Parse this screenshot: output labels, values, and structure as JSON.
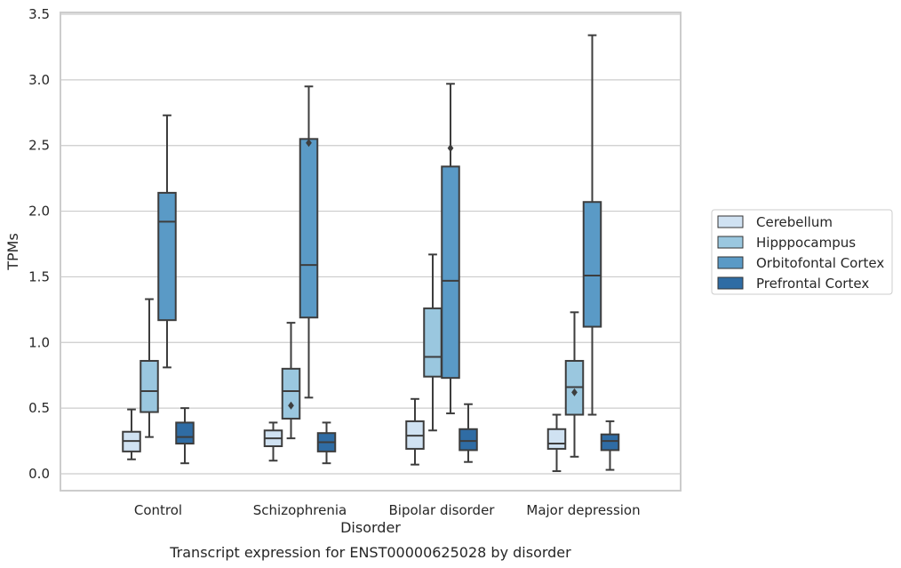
{
  "chart_data": {
    "type": "box",
    "title": "Transcript expression for ENST00000625028 by disorder",
    "xlabel": "Disorder",
    "ylabel": "TPMs",
    "ylim": [
      -0.13,
      3.52
    ],
    "yticks": [
      "0.0",
      "0.5",
      "1.0",
      "1.5",
      "2.0",
      "2.5",
      "3.0",
      "3.5"
    ],
    "grid": true,
    "legend_position": "right",
    "categories": [
      "Control",
      "Schizophrenia",
      "Bipolar disorder",
      "Major depression"
    ],
    "series": [
      {
        "name": "Cerebellum",
        "color": "#d0e2f2",
        "boxes": [
          {
            "whislo": 0.11,
            "q1": 0.17,
            "med": 0.25,
            "q3": 0.32,
            "whishi": 0.49,
            "fliers": []
          },
          {
            "whislo": 0.1,
            "q1": 0.21,
            "med": 0.27,
            "q3": 0.33,
            "whishi": 0.39,
            "fliers": []
          },
          {
            "whislo": 0.07,
            "q1": 0.19,
            "med": 0.29,
            "q3": 0.4,
            "whishi": 0.57,
            "fliers": []
          },
          {
            "whislo": 0.02,
            "q1": 0.19,
            "med": 0.23,
            "q3": 0.34,
            "whishi": 0.45,
            "fliers": []
          }
        ]
      },
      {
        "name": "Hipppocampus",
        "color": "#9ac7df",
        "boxes": [
          {
            "whislo": 0.28,
            "q1": 0.47,
            "med": 0.63,
            "q3": 0.86,
            "whishi": 1.33,
            "fliers": []
          },
          {
            "whislo": 0.27,
            "q1": 0.42,
            "med": 0.63,
            "q3": 0.8,
            "whishi": 1.15,
            "fliers": [
              0.52
            ]
          },
          {
            "whislo": 0.33,
            "q1": 0.74,
            "med": 0.89,
            "q3": 1.26,
            "whishi": 1.67,
            "fliers": []
          },
          {
            "whislo": 0.13,
            "q1": 0.45,
            "med": 0.66,
            "q3": 0.86,
            "whishi": 1.23,
            "fliers": [
              0.62
            ]
          }
        ]
      },
      {
        "name": "Orbitofontal Cortex",
        "color": "#5a9ac6",
        "boxes": [
          {
            "whislo": 0.81,
            "q1": 1.17,
            "med": 1.92,
            "q3": 2.14,
            "whishi": 2.73,
            "fliers": []
          },
          {
            "whislo": 0.58,
            "q1": 1.19,
            "med": 1.59,
            "q3": 2.55,
            "whishi": 2.95,
            "fliers": [
              2.52
            ]
          },
          {
            "whislo": 0.46,
            "q1": 0.73,
            "med": 1.47,
            "q3": 2.34,
            "whishi": 2.97,
            "fliers": [
              2.48
            ]
          },
          {
            "whislo": 0.45,
            "q1": 1.12,
            "med": 1.51,
            "q3": 2.07,
            "whishi": 3.34,
            "fliers": []
          }
        ]
      },
      {
        "name": "Prefrontal Cortex",
        "color": "#2f6ca4",
        "boxes": [
          {
            "whislo": 0.08,
            "q1": 0.23,
            "med": 0.28,
            "q3": 0.39,
            "whishi": 0.5,
            "fliers": []
          },
          {
            "whislo": 0.08,
            "q1": 0.17,
            "med": 0.24,
            "q3": 0.31,
            "whishi": 0.39,
            "fliers": []
          },
          {
            "whislo": 0.09,
            "q1": 0.18,
            "med": 0.25,
            "q3": 0.34,
            "whishi": 0.53,
            "fliers": []
          },
          {
            "whislo": 0.03,
            "q1": 0.18,
            "med": 0.25,
            "q3": 0.3,
            "whishi": 0.4,
            "fliers": []
          }
        ]
      }
    ]
  }
}
